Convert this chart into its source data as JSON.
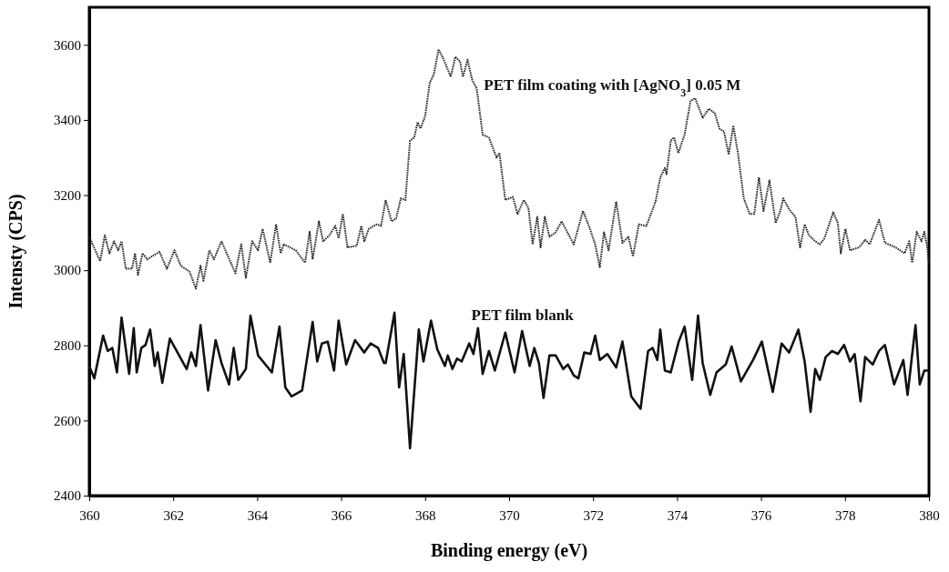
{
  "chart_data": {
    "type": "line",
    "xlabel": "Binding energy (eV)",
    "ylabel": "Intensty (CPS)",
    "xlim": [
      360,
      380
    ],
    "xticks": [
      360,
      362,
      364,
      366,
      368,
      370,
      372,
      374,
      376,
      378,
      380
    ],
    "ylim": [
      2400,
      3700
    ],
    "yticks": [
      2400,
      2600,
      2800,
      3000,
      3200,
      3400,
      3600
    ],
    "grid": false,
    "legend": false,
    "marker": "none",
    "series": [
      {
        "name": "PET film coating with [AgNO$_{3}$] 0.05 M",
        "color": "#222222",
        "line_style": "dotted",
        "x": [
          360,
          360.26,
          360.37,
          360.48,
          360.59,
          360.69,
          360.77,
          360.87,
          361.02,
          361.09,
          361.16,
          361.27,
          361.38,
          361.67,
          361.85,
          362.03,
          362.18,
          362.39,
          362.54,
          362.65,
          362.72,
          362.86,
          362.97,
          363.15,
          363.48,
          363.62,
          363.73,
          363.88,
          364.02,
          364.13,
          364.31,
          364.45,
          364.56,
          364.63,
          364.92,
          365.14,
          365.25,
          365.32,
          365.47,
          365.57,
          365.72,
          365.86,
          365.94,
          366.04,
          366.15,
          366.37,
          366.48,
          366.55,
          366.66,
          366.84,
          366.95,
          367.06,
          367.2,
          367.31,
          367.42,
          367.53,
          367.64,
          367.74,
          367.82,
          367.89,
          368,
          368.11,
          368.21,
          368.32,
          368.43,
          368.61,
          368.72,
          368.83,
          368.9,
          369.01,
          369.12,
          369.23,
          369.37,
          369.52,
          369.7,
          369.77,
          369.91,
          370.09,
          370.2,
          370.35,
          370.46,
          370.56,
          370.67,
          370.75,
          370.85,
          370.96,
          371.11,
          371.25,
          371.54,
          371.76,
          371.9,
          372.05,
          372.16,
          372.26,
          372.37,
          372.55,
          372.7,
          372.84,
          372.95,
          373.09,
          373.27,
          373.49,
          373.6,
          373.71,
          373.75,
          373.85,
          373.93,
          374.03,
          374.18,
          374.32,
          374.43,
          374.61,
          374.76,
          374.9,
          375.01,
          375.12,
          375.23,
          375.34,
          375.45,
          375.59,
          375.73,
          375.84,
          375.95,
          376.06,
          376.2,
          376.35,
          376.46,
          376.53,
          376.67,
          376.82,
          376.93,
          377.04,
          377.14,
          377.29,
          377.4,
          377.51,
          377.72,
          377.83,
          377.9,
          378.01,
          378.12,
          378.34,
          378.48,
          378.59,
          378.81,
          378.95,
          379.2,
          379.42,
          379.53,
          379.6,
          379.71,
          379.82,
          379.89,
          379.96,
          380
        ],
        "values": [
          3089,
          3024,
          3093,
          3045,
          3077,
          3053,
          3077,
          3004,
          3004,
          3045,
          2988,
          3045,
          3029,
          3049,
          3004,
          3053,
          3012,
          2996,
          2951,
          3012,
          2972,
          3053,
          3029,
          3077,
          2992,
          3069,
          2980,
          3077,
          3053,
          3110,
          3020,
          3122,
          3045,
          3069,
          3053,
          3020,
          3102,
          3029,
          3130,
          3077,
          3093,
          3118,
          3085,
          3150,
          3061,
          3065,
          3118,
          3077,
          3110,
          3122,
          3118,
          3187,
          3130,
          3138,
          3191,
          3187,
          3345,
          3353,
          3394,
          3377,
          3410,
          3499,
          3523,
          3588,
          3564,
          3515,
          3568,
          3556,
          3515,
          3560,
          3507,
          3483,
          3361,
          3353,
          3300,
          3312,
          3187,
          3195,
          3150,
          3187,
          3166,
          3069,
          3142,
          3061,
          3142,
          3089,
          3101,
          3130,
          3069,
          3158,
          3118,
          3069,
          3008,
          3101,
          3053,
          3183,
          3073,
          3089,
          3037,
          3122,
          3118,
          3183,
          3247,
          3272,
          3256,
          3345,
          3353,
          3312,
          3361,
          3450,
          3458,
          3406,
          3430,
          3418,
          3377,
          3369,
          3308,
          3385,
          3312,
          3191,
          3150,
          3150,
          3247,
          3158,
          3239,
          3126,
          3158,
          3191,
          3162,
          3142,
          3061,
          3122,
          3093,
          3077,
          3069,
          3085,
          3154,
          3126,
          3045,
          3110,
          3053,
          3061,
          3081,
          3069,
          3134,
          3073,
          3061,
          3045,
          3077,
          3020,
          3102,
          3077,
          3102,
          3061,
          3020
        ]
      },
      {
        "name": "PET film blank",
        "color": "#111111",
        "line_style": "solid",
        "x": [
          360,
          360.12,
          360.33,
          360.44,
          360.55,
          360.66,
          360.77,
          360.95,
          361.06,
          361.13,
          361.24,
          361.34,
          361.45,
          361.56,
          361.63,
          361.74,
          361.92,
          362.32,
          362.43,
          362.54,
          362.65,
          362.83,
          363.01,
          363.15,
          363.33,
          363.44,
          363.55,
          363.73,
          363.84,
          364.02,
          364.35,
          364.53,
          364.67,
          364.82,
          365.07,
          365.32,
          365.43,
          365.54,
          365.68,
          365.83,
          365.94,
          366.12,
          366.33,
          366.55,
          366.7,
          366.88,
          367.02,
          367.06,
          367.27,
          367.38,
          367.49,
          367.64,
          367.85,
          367.96,
          368.14,
          368.29,
          368.47,
          368.54,
          368.65,
          368.76,
          368.87,
          369.05,
          369.15,
          369.26,
          369.37,
          369.52,
          369.66,
          369.91,
          370.13,
          370.31,
          370.49,
          370.6,
          370.71,
          370.82,
          370.96,
          371.11,
          371.29,
          371.4,
          371.54,
          371.65,
          371.79,
          371.94,
          372.05,
          372.16,
          372.34,
          372.55,
          372.7,
          372.91,
          373.13,
          373.31,
          373.42,
          373.53,
          373.6,
          373.71,
          373.85,
          374.04,
          374.18,
          374.36,
          374.5,
          374.61,
          374.79,
          374.94,
          375.16,
          375.3,
          375.52,
          375.81,
          376.02,
          376.28,
          376.49,
          376.67,
          376.89,
          377.04,
          377.18,
          377.29,
          377.4,
          377.54,
          377.69,
          377.83,
          377.98,
          378.12,
          378.23,
          378.37,
          378.48,
          378.66,
          378.81,
          378.95,
          379.17,
          379.39,
          379.49,
          379.68,
          379.78,
          379.89,
          380
        ],
        "values": [
          2745,
          2712,
          2826,
          2785,
          2793,
          2728,
          2874,
          2724,
          2846,
          2728,
          2793,
          2801,
          2842,
          2745,
          2781,
          2700,
          2818,
          2737,
          2781,
          2745,
          2854,
          2680,
          2814,
          2753,
          2696,
          2793,
          2708,
          2737,
          2879,
          2773,
          2728,
          2850,
          2688,
          2664,
          2680,
          2862,
          2757,
          2805,
          2810,
          2733,
          2866,
          2749,
          2814,
          2781,
          2805,
          2793,
          2753,
          2753,
          2887,
          2688,
          2777,
          2526,
          2842,
          2757,
          2866,
          2789,
          2745,
          2773,
          2737,
          2765,
          2757,
          2805,
          2777,
          2846,
          2724,
          2785,
          2733,
          2834,
          2728,
          2838,
          2745,
          2793,
          2753,
          2660,
          2773,
          2773,
          2737,
          2749,
          2720,
          2712,
          2781,
          2777,
          2826,
          2761,
          2777,
          2741,
          2810,
          2664,
          2631,
          2785,
          2793,
          2761,
          2842,
          2733,
          2728,
          2810,
          2850,
          2708,
          2879,
          2753,
          2668,
          2728,
          2749,
          2797,
          2704,
          2761,
          2810,
          2676,
          2805,
          2781,
          2842,
          2757,
          2623,
          2737,
          2708,
          2769,
          2785,
          2777,
          2801,
          2757,
          2777,
          2651,
          2769,
          2749,
          2785,
          2801,
          2696,
          2761,
          2668,
          2854,
          2696,
          2733,
          2733
        ]
      }
    ]
  }
}
